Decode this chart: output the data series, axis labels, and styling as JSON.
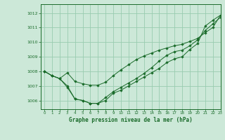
{
  "title": "Graphe pression niveau de la mer (hPa)",
  "background_color": "#cce8d8",
  "grid_color": "#99ccb0",
  "line_color": "#1a6b2a",
  "marker_color": "#1a6b2a",
  "xlim": [
    -0.5,
    23
  ],
  "ylim": [
    1005.4,
    1012.6
  ],
  "yticks": [
    1006,
    1007,
    1008,
    1009,
    1010,
    1011,
    1012
  ],
  "xticks": [
    0,
    1,
    2,
    3,
    4,
    5,
    6,
    7,
    8,
    9,
    10,
    11,
    12,
    13,
    14,
    15,
    16,
    17,
    18,
    19,
    20,
    21,
    22,
    23
  ],
  "series": [
    [
      1008.0,
      1007.7,
      1007.5,
      1006.9,
      1006.1,
      1006.0,
      1005.8,
      1005.8,
      1006.0,
      1006.5,
      1006.7,
      1007.0,
      1007.3,
      1007.6,
      1007.9,
      1008.2,
      1008.6,
      1008.85,
      1009.0,
      1009.5,
      1009.9,
      1011.1,
      1011.5,
      1011.85
    ],
    [
      1008.0,
      1007.7,
      1007.5,
      1007.0,
      1006.1,
      1006.0,
      1005.8,
      1005.8,
      1006.2,
      1006.6,
      1006.9,
      1007.2,
      1007.5,
      1007.85,
      1008.25,
      1008.7,
      1009.1,
      1009.35,
      1009.45,
      1009.75,
      1010.15,
      1010.8,
      1011.25,
      1011.7
    ],
    [
      1008.0,
      1007.7,
      1007.5,
      1007.9,
      1007.3,
      1007.15,
      1007.05,
      1007.05,
      1007.25,
      1007.7,
      1008.1,
      1008.45,
      1008.8,
      1009.05,
      1009.25,
      1009.45,
      1009.6,
      1009.75,
      1009.85,
      1010.05,
      1010.25,
      1010.65,
      1011.0,
      1011.85
    ]
  ]
}
